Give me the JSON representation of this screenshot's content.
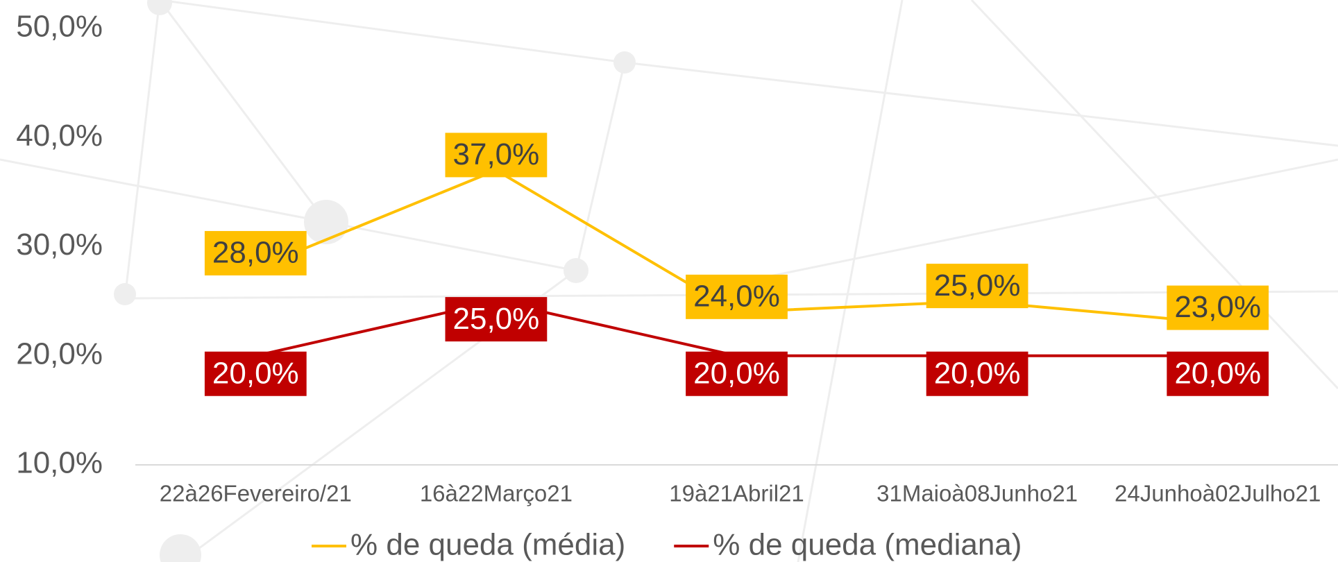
{
  "chart_data": {
    "type": "line",
    "categories": [
      "22à26Fevereiro/21",
      "16à22Março21",
      "19à21Abril21",
      "31Maioà08Junho21",
      "24Junhoà02Julho21"
    ],
    "series": [
      {
        "name": "% de queda (média)",
        "color": "#FFC000",
        "values": [
          28,
          37,
          24,
          25,
          23
        ],
        "value_labels": [
          "28,0%",
          "37,0%",
          "24,0%",
          "25,0%",
          "23,0%"
        ]
      },
      {
        "name": "% de queda (mediana)",
        "color": "#C00000",
        "values": [
          20,
          25,
          20,
          20,
          20
        ],
        "value_labels": [
          "20,0%",
          "25,0%",
          "20,0%",
          "20,0%",
          "20,0%"
        ]
      }
    ],
    "ylim": [
      10,
      50
    ],
    "yticks": [
      {
        "value": 10,
        "label": "10,0%"
      },
      {
        "value": 20,
        "label": "20,0%"
      },
      {
        "value": 30,
        "label": "30,0%"
      },
      {
        "value": 40,
        "label": "40,0%"
      },
      {
        "value": 50,
        "label": "50,0%"
      }
    ],
    "legend": "bottom"
  }
}
